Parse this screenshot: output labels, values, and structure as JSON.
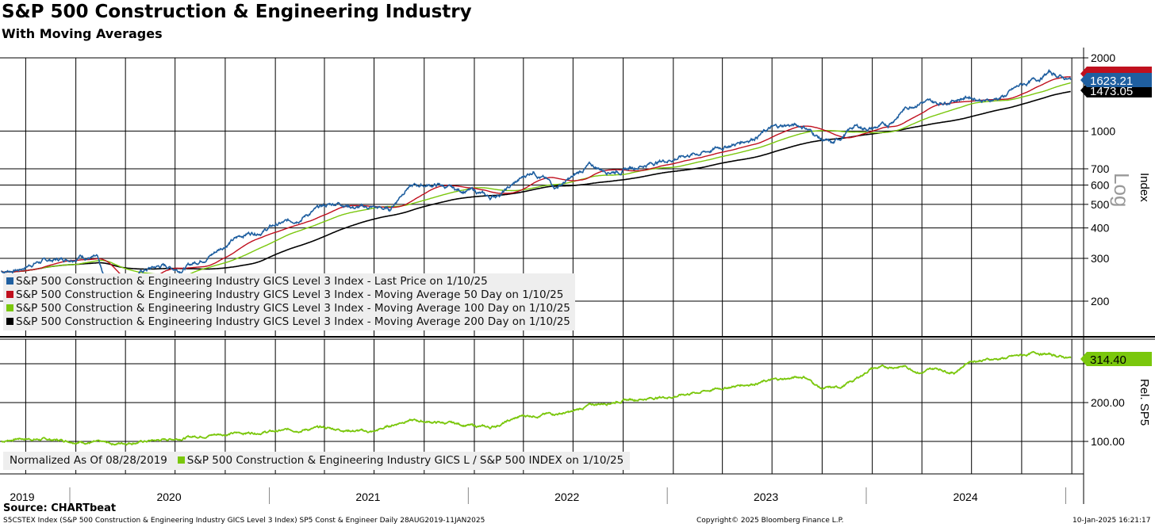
{
  "title": "S&P 500 Construction & Engineering Industry",
  "subtitle": "With Moving Averages",
  "source": "Source: CHARTbeat",
  "footer_left": "S5CSTEX Index (S&P 500 Construction & Engineering Industry GICS Level 3 Index) SP5 Const & Engineer  Daily 28AUG2019-11JAN2025",
  "footer_center": "Copyright© 2025 Bloomberg Finance L.P.",
  "footer_right": "10-Jan-2025 16:21:17",
  "chart_data": [
    {
      "type": "line",
      "scale": "log",
      "ylabel": "Index",
      "scale_label": "Log",
      "yticks": [
        2000,
        1000,
        700,
        600,
        500,
        400,
        300,
        200
      ],
      "ylim": [
        150,
        2000
      ],
      "legend": [
        "S&P 500 Construction & Engineering Industry GICS Level 3 Index - Last Price on 1/10/25",
        "S&P 500 Construction & Engineering Industry GICS Level 3 Index - Moving Average 50 Day on 1/10/25",
        "S&P 500 Construction & Engineering Industry GICS Level 3 Index - Moving Average 100 Day on 1/10/25",
        "S&P 500 Construction & Engineering Industry GICS Level 3 Index - Moving Average 200 Day on 1/10/25"
      ],
      "legend_position": "bottom-left",
      "colors": [
        "#1f5fa0",
        "#c0101e",
        "#7ac70c",
        "#000000"
      ],
      "last_values": {
        "price": "1623.21",
        "ma200": "1473.05"
      },
      "price": [
        [
          "2019-08-28",
          265
        ],
        [
          "2019-09-30",
          270
        ],
        [
          "2019-11-01",
          290
        ],
        [
          "2020-01-01",
          300
        ],
        [
          "2020-01-20",
          310
        ],
        [
          "2020-02-20",
          300
        ],
        [
          "2020-03-20",
          190
        ],
        [
          "2020-04-20",
          250
        ],
        [
          "2020-05-20",
          270
        ],
        [
          "2020-06-20",
          280
        ],
        [
          "2020-07-20",
          270
        ],
        [
          "2020-08-20",
          290
        ],
        [
          "2020-09-20",
          315
        ],
        [
          "2020-10-20",
          350
        ],
        [
          "2020-11-20",
          380
        ],
        [
          "2020-12-20",
          390
        ],
        [
          "2021-01-10",
          410
        ],
        [
          "2021-02-10",
          425
        ],
        [
          "2021-03-10",
          455
        ],
        [
          "2021-04-10",
          490
        ],
        [
          "2021-05-10",
          510
        ],
        [
          "2021-06-10",
          485
        ],
        [
          "2021-07-10",
          485
        ],
        [
          "2021-08-10",
          475
        ],
        [
          "2021-09-10",
          590
        ],
        [
          "2021-10-10",
          600
        ],
        [
          "2021-11-10",
          600
        ],
        [
          "2021-12-10",
          570
        ],
        [
          "2022-01-10",
          570
        ],
        [
          "2022-02-10",
          530
        ],
        [
          "2022-03-10",
          570
        ],
        [
          "2022-04-10",
          640
        ],
        [
          "2022-05-01",
          690
        ],
        [
          "2022-06-10",
          590
        ],
        [
          "2022-07-10",
          640
        ],
        [
          "2022-08-10",
          720
        ],
        [
          "2022-09-10",
          690
        ],
        [
          "2022-10-10",
          690
        ],
        [
          "2022-11-10",
          720
        ],
        [
          "2022-12-10",
          745
        ],
        [
          "2023-01-10",
          770
        ],
        [
          "2023-02-10",
          800
        ],
        [
          "2023-03-10",
          820
        ],
        [
          "2023-04-10",
          860
        ],
        [
          "2023-05-10",
          890
        ],
        [
          "2023-06-10",
          950
        ],
        [
          "2023-07-10",
          1025
        ],
        [
          "2023-08-10",
          1060
        ],
        [
          "2023-09-10",
          1045
        ],
        [
          "2023-10-10",
          930
        ],
        [
          "2023-11-01",
          880
        ],
        [
          "2023-12-10",
          1045
        ],
        [
          "2024-01-10",
          1025
        ],
        [
          "2024-02-10",
          1060
        ],
        [
          "2024-03-10",
          1230
        ],
        [
          "2024-04-10",
          1330
        ],
        [
          "2024-05-10",
          1300
        ],
        [
          "2024-06-10",
          1355
        ],
        [
          "2024-07-10",
          1390
        ],
        [
          "2024-08-10",
          1330
        ],
        [
          "2024-09-10",
          1390
        ],
        [
          "2024-10-10",
          1540
        ],
        [
          "2024-11-10",
          1630
        ],
        [
          "2024-12-01",
          1740
        ],
        [
          "2025-01-10",
          1623
        ]
      ]
    },
    {
      "type": "line",
      "ylabel": "Rel. SP5",
      "yticks": [
        100,
        200,
        300
      ],
      "tick_labels": [
        "100.00",
        "200.00"
      ],
      "last_value": "314.40",
      "color": "#7ac70c",
      "legend": [
        "Normalized As Of 08/28/2019",
        "S&P 500 Construction & Engineering Industry GICS L / S&P 500 INDEX on 1/10/25"
      ],
      "series": [
        [
          "2019-08-28",
          100
        ],
        [
          "2019-09-30",
          108
        ],
        [
          "2020-01-01",
          102
        ],
        [
          "2020-03-20",
          94
        ],
        [
          "2020-06-20",
          104
        ],
        [
          "2020-09-20",
          118
        ],
        [
          "2021-01-10",
          126
        ],
        [
          "2021-04-10",
          135
        ],
        [
          "2021-07-10",
          124
        ],
        [
          "2021-09-10",
          155
        ],
        [
          "2021-12-10",
          145
        ],
        [
          "2022-02-10",
          135
        ],
        [
          "2022-04-10",
          165
        ],
        [
          "2022-07-10",
          175
        ],
        [
          "2022-08-10",
          192
        ],
        [
          "2022-10-10",
          206
        ],
        [
          "2023-01-10",
          216
        ],
        [
          "2023-04-10",
          237
        ],
        [
          "2023-07-10",
          257
        ],
        [
          "2023-09-10",
          267
        ],
        [
          "2023-10-10",
          237
        ],
        [
          "2023-11-10",
          237
        ],
        [
          "2023-12-10",
          257
        ],
        [
          "2024-01-10",
          288
        ],
        [
          "2024-03-10",
          294
        ],
        [
          "2024-04-10",
          278
        ],
        [
          "2024-05-10",
          288
        ],
        [
          "2024-06-10",
          278
        ],
        [
          "2024-07-10",
          308
        ],
        [
          "2024-09-10",
          314
        ],
        [
          "2024-11-10",
          328
        ],
        [
          "2024-12-10",
          322
        ],
        [
          "2025-01-10",
          314.4
        ]
      ]
    }
  ],
  "x_axis": {
    "years": [
      "2019",
      "2020",
      "2021",
      "2022",
      "2023",
      "2024"
    ]
  }
}
